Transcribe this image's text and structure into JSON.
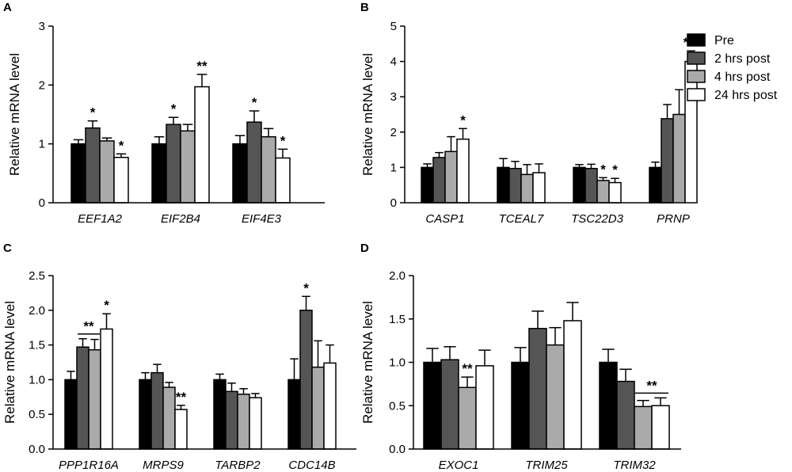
{
  "colors": {
    "pre": "#000000",
    "post2": "#555555",
    "post4": "#aaaaaa",
    "post24": "#ffffff",
    "stroke": "#000000"
  },
  "legend": {
    "entries": [
      {
        "label": "Pre",
        "color_key": "pre"
      },
      {
        "label": "2 hrs post",
        "color_key": "post2"
      },
      {
        "label": "4 hrs post",
        "color_key": "post4"
      },
      {
        "label": "24 hrs post",
        "color_key": "post24"
      }
    ]
  },
  "chart_data": [
    {
      "panel": "A",
      "type": "bar",
      "title": "",
      "xlabel": "",
      "ylabel": "Relative mRNA level",
      "ylim": [
        0,
        3
      ],
      "yticks": [
        "0",
        "1",
        "2",
        "3"
      ],
      "categories": [
        "EEF1A2",
        "EIF2B4",
        "EIF4E3"
      ],
      "series": [
        {
          "name": "Pre",
          "values": [
            1.0,
            1.0,
            1.0
          ],
          "errors": [
            0.07,
            0.12,
            0.14
          ]
        },
        {
          "name": "2 hrs post",
          "values": [
            1.27,
            1.33,
            1.37
          ],
          "errors": [
            0.12,
            0.12,
            0.19
          ]
        },
        {
          "name": "4 hrs post",
          "values": [
            1.05,
            1.22,
            1.12
          ],
          "errors": [
            0.05,
            0.11,
            0.14
          ]
        },
        {
          "name": "24 hrs post",
          "values": [
            0.77,
            1.97,
            0.76
          ],
          "errors": [
            0.06,
            0.21,
            0.15
          ]
        }
      ],
      "annotations": [
        {
          "category": 0,
          "series": 1,
          "text": "*"
        },
        {
          "category": 0,
          "series": 3,
          "text": "*"
        },
        {
          "category": 1,
          "series": 1,
          "text": "*"
        },
        {
          "category": 1,
          "series": 3,
          "text": "**"
        },
        {
          "category": 2,
          "series": 1,
          "text": "*"
        },
        {
          "category": 2,
          "series": 3,
          "text": "*"
        }
      ]
    },
    {
      "panel": "B",
      "type": "bar",
      "title": "",
      "xlabel": "",
      "ylabel": "Relative mRNA level",
      "ylim": [
        0,
        5
      ],
      "yticks": [
        "0",
        "1",
        "2",
        "3",
        "4",
        "5"
      ],
      "categories": [
        "CASP1",
        "TCEAL7",
        "TSC22D3",
        "PRNP"
      ],
      "series": [
        {
          "name": "Pre",
          "values": [
            1.0,
            1.0,
            1.0,
            1.0
          ],
          "errors": [
            0.1,
            0.25,
            0.08,
            0.15
          ]
        },
        {
          "name": "2 hrs post",
          "values": [
            1.28,
            0.97,
            0.97,
            2.38
          ],
          "errors": [
            0.14,
            0.2,
            0.12,
            0.4
          ]
        },
        {
          "name": "4 hrs post",
          "values": [
            1.45,
            0.8,
            0.63,
            2.5
          ],
          "errors": [
            0.42,
            0.28,
            0.08,
            0.7
          ]
        },
        {
          "name": "24 hrs post",
          "values": [
            1.8,
            0.85,
            0.57,
            4.0
          ],
          "errors": [
            0.3,
            0.25,
            0.12,
            0.3
          ]
        }
      ],
      "annotations": [
        {
          "category": 0,
          "series": 3,
          "text": "*"
        },
        {
          "category": 2,
          "series": 2,
          "text": "*"
        },
        {
          "category": 2,
          "series": 3,
          "text": "*"
        },
        {
          "category": 3,
          "series": 3,
          "text": "***"
        }
      ]
    },
    {
      "panel": "C",
      "type": "bar",
      "title": "",
      "xlabel": "",
      "ylabel": "Relative mRNA level",
      "ylim": [
        0,
        2.5
      ],
      "yticks": [
        "0.0",
        "0.5",
        "1.0",
        "1.5",
        "2.0",
        "2.5"
      ],
      "categories": [
        "PPP1R16A",
        "MRPS9",
        "TARBP2",
        "CDC14B"
      ],
      "series": [
        {
          "name": "Pre",
          "values": [
            1.0,
            1.0,
            1.0,
            1.0
          ],
          "errors": [
            0.12,
            0.1,
            0.08,
            0.3
          ]
        },
        {
          "name": "2 hrs post",
          "values": [
            1.47,
            1.1,
            0.83,
            2.0
          ],
          "errors": [
            0.12,
            0.12,
            0.12,
            0.2
          ]
        },
        {
          "name": "4 hrs post",
          "values": [
            1.43,
            0.89,
            0.79,
            1.18
          ],
          "errors": [
            0.15,
            0.07,
            0.08,
            0.38
          ]
        },
        {
          "name": "24 hrs post",
          "values": [
            1.73,
            0.57,
            0.74,
            1.24
          ],
          "errors": [
            0.22,
            0.06,
            0.06,
            0.26
          ]
        }
      ],
      "annotations": [
        {
          "category": 0,
          "series": 3,
          "text": "*"
        },
        {
          "category": 1,
          "series": 3,
          "text": "**"
        },
        {
          "category": 3,
          "series": 1,
          "text": "*"
        }
      ],
      "brackets": [
        {
          "category": 0,
          "from_series": 1,
          "to_series": 2,
          "text": "**"
        }
      ]
    },
    {
      "panel": "D",
      "type": "bar",
      "title": "",
      "xlabel": "",
      "ylabel": "Relative mRNA level",
      "ylim": [
        0,
        2.0
      ],
      "yticks": [
        "0.0",
        "0.5",
        "1.0",
        "1.5",
        "2.0"
      ],
      "categories": [
        "EXOC1",
        "TRIM25",
        "TRIM32"
      ],
      "series": [
        {
          "name": "Pre",
          "values": [
            1.0,
            1.0,
            1.0
          ],
          "errors": [
            0.16,
            0.17,
            0.15
          ]
        },
        {
          "name": "2 hrs post",
          "values": [
            1.03,
            1.39,
            0.78
          ],
          "errors": [
            0.15,
            0.2,
            0.14
          ]
        },
        {
          "name": "4 hrs post",
          "values": [
            0.71,
            1.2,
            0.49
          ],
          "errors": [
            0.12,
            0.2,
            0.07
          ]
        },
        {
          "name": "24 hrs post",
          "values": [
            0.96,
            1.48,
            0.5
          ],
          "errors": [
            0.18,
            0.21,
            0.09
          ]
        }
      ],
      "annotations": [
        {
          "category": 0,
          "series": 2,
          "text": "**"
        }
      ],
      "brackets": [
        {
          "category": 2,
          "from_series": 2,
          "to_series": 3,
          "text": "**"
        }
      ]
    }
  ]
}
